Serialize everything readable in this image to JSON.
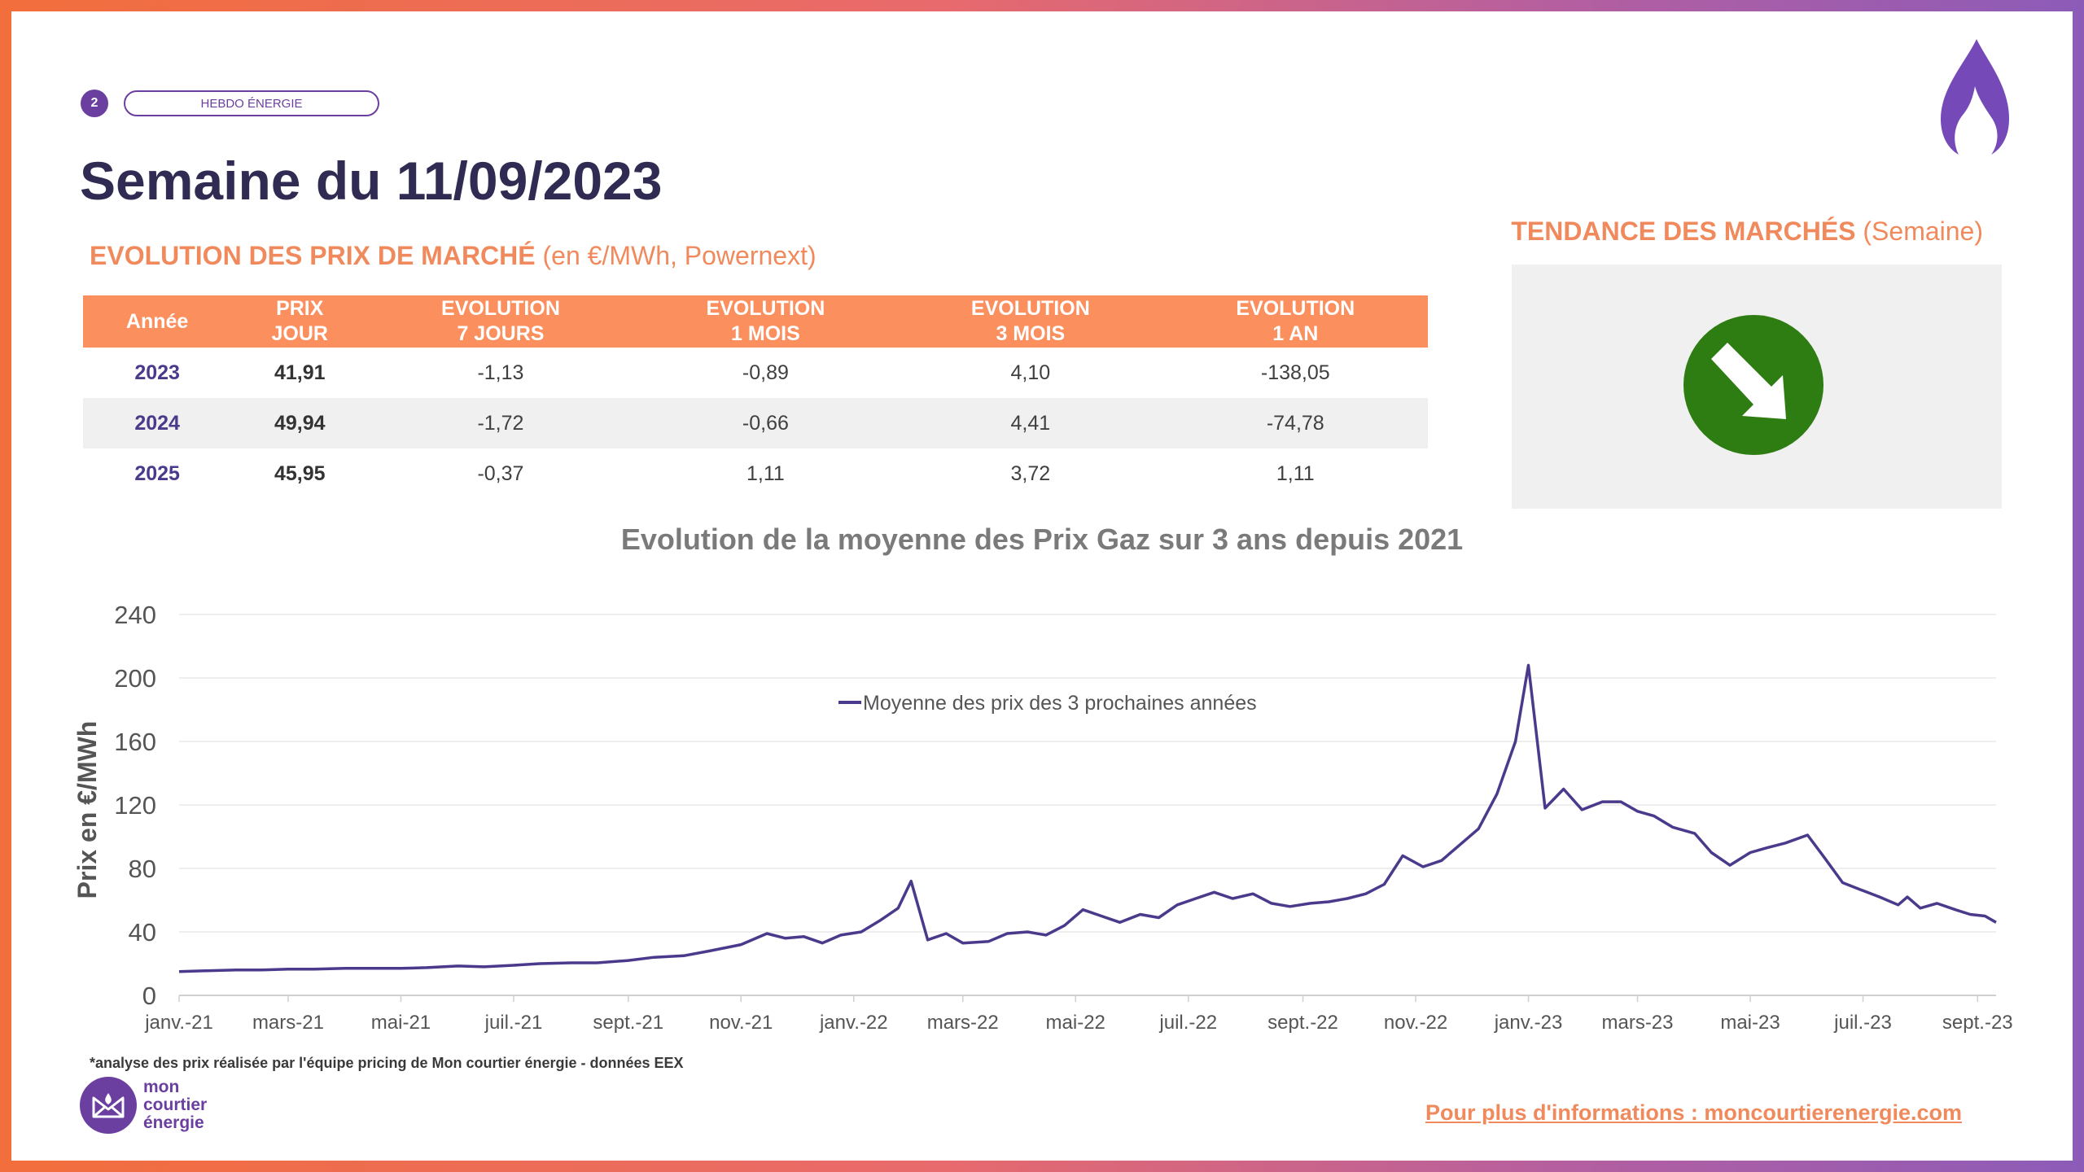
{
  "header": {
    "page_number": "2",
    "section_label": "HEBDO ÉNERGIE",
    "title": "Semaine du 11/09/2023"
  },
  "market_table": {
    "title_bold": "EVOLUTION DES PRIX DE MARCHÉ",
    "title_rest": " (en €/MWh, Powernext)",
    "headers": [
      [
        "Année"
      ],
      [
        "PRIX",
        "JOUR"
      ],
      [
        "EVOLUTION",
        "7 JOURS"
      ],
      [
        "EVOLUTION",
        "1 MOIS"
      ],
      [
        "EVOLUTION",
        "3 MOIS"
      ],
      [
        "EVOLUTION",
        "1 AN"
      ]
    ],
    "rows": [
      [
        "2023",
        "41,91",
        "-1,13",
        "-0,89",
        "4,10",
        "-138,05"
      ],
      [
        "2024",
        "49,94",
        "-1,72",
        "-0,66",
        "4,41",
        "-74,78"
      ],
      [
        "2025",
        "45,95",
        "-0,37",
        "1,11",
        "3,72",
        "1,11"
      ]
    ]
  },
  "trend": {
    "title_bold": "TENDANCE DES MARCHÉS",
    "title_rest": " (Semaine)",
    "direction": "down",
    "color": "#2e7d12"
  },
  "chart_data": {
    "type": "line",
    "title": "Evolution de la moyenne des Prix Gaz sur 3 ans depuis 2021",
    "ylabel": "Prix en €/MWh",
    "xlabel": "",
    "ylim": [
      0,
      240
    ],
    "yticks": [
      0,
      40,
      80,
      120,
      160,
      200,
      240
    ],
    "grid": true,
    "legend_position": "top-center",
    "x_tick_labels": [
      "janv.-21",
      "mars-21",
      "mai-21",
      "juil.-21",
      "sept.-21",
      "nov.-21",
      "janv.-22",
      "mars-22",
      "mai-22",
      "juil.-22",
      "sept.-22",
      "nov.-22",
      "janv.-23",
      "mars-23",
      "mai-23",
      "juil.-23",
      "sept.-23"
    ],
    "x_start": "2021-01-01",
    "x_end": "2023-09-11",
    "series": [
      {
        "name": "Moyenne des prix des 3 prochaines années",
        "color": "#4b3a8c",
        "points": [
          [
            "2021-01-01",
            15
          ],
          [
            "2021-01-15",
            15.5
          ],
          [
            "2021-02-01",
            16
          ],
          [
            "2021-02-15",
            16
          ],
          [
            "2021-03-01",
            16.5
          ],
          [
            "2021-03-15",
            16.5
          ],
          [
            "2021-04-01",
            17
          ],
          [
            "2021-04-15",
            17
          ],
          [
            "2021-05-01",
            17
          ],
          [
            "2021-05-15",
            17.5
          ],
          [
            "2021-06-01",
            18.5
          ],
          [
            "2021-06-15",
            18
          ],
          [
            "2021-07-01",
            19
          ],
          [
            "2021-07-15",
            20
          ],
          [
            "2021-08-01",
            20.5
          ],
          [
            "2021-08-15",
            20.5
          ],
          [
            "2021-09-01",
            22
          ],
          [
            "2021-09-15",
            24
          ],
          [
            "2021-10-01",
            25
          ],
          [
            "2021-10-15",
            28
          ],
          [
            "2021-11-01",
            32
          ],
          [
            "2021-11-15",
            39
          ],
          [
            "2021-11-25",
            36
          ],
          [
            "2021-12-05",
            37
          ],
          [
            "2021-12-15",
            33
          ],
          [
            "2021-12-25",
            38
          ],
          [
            "2022-01-05",
            40
          ],
          [
            "2022-01-15",
            47
          ],
          [
            "2022-01-25",
            55
          ],
          [
            "2022-02-01",
            72
          ],
          [
            "2022-02-10",
            35
          ],
          [
            "2022-02-20",
            39
          ],
          [
            "2022-03-01",
            33
          ],
          [
            "2022-03-15",
            34
          ],
          [
            "2022-03-25",
            39
          ],
          [
            "2022-04-05",
            40
          ],
          [
            "2022-04-15",
            38
          ],
          [
            "2022-04-25",
            44
          ],
          [
            "2022-05-05",
            54
          ],
          [
            "2022-05-15",
            50
          ],
          [
            "2022-05-25",
            46
          ],
          [
            "2022-06-05",
            51
          ],
          [
            "2022-06-15",
            49
          ],
          [
            "2022-06-25",
            57
          ],
          [
            "2022-07-05",
            61
          ],
          [
            "2022-07-15",
            65
          ],
          [
            "2022-07-25",
            61
          ],
          [
            "2022-08-05",
            64
          ],
          [
            "2022-08-15",
            58
          ],
          [
            "2022-08-25",
            56
          ],
          [
            "2022-09-05",
            58
          ],
          [
            "2022-09-15",
            59
          ],
          [
            "2022-09-25",
            61
          ],
          [
            "2022-10-05",
            64
          ],
          [
            "2022-10-15",
            70
          ],
          [
            "2022-10-25",
            88
          ],
          [
            "2022-11-05",
            81
          ],
          [
            "2022-11-15",
            85
          ],
          [
            "2022-11-25",
            95
          ],
          [
            "2022-12-05",
            105
          ],
          [
            "2022-12-15",
            127
          ],
          [
            "2022-12-25",
            160
          ],
          [
            "2023-01-01",
            208
          ],
          [
            "2023-01-10",
            118
          ],
          [
            "2023-01-20",
            130
          ],
          [
            "2023-01-30",
            117
          ],
          [
            "2023-02-10",
            122
          ],
          [
            "2023-02-20",
            122
          ],
          [
            "2023-03-01",
            116
          ],
          [
            "2023-03-10",
            113
          ],
          [
            "2023-03-20",
            106
          ],
          [
            "2023-04-01",
            102
          ],
          [
            "2023-04-10",
            90
          ],
          [
            "2023-04-20",
            82
          ],
          [
            "2023-05-01",
            90
          ],
          [
            "2023-05-10",
            93
          ],
          [
            "2023-05-20",
            96
          ],
          [
            "2023-06-01",
            101
          ],
          [
            "2023-06-10",
            87
          ],
          [
            "2023-06-20",
            71
          ],
          [
            "2023-07-01",
            66
          ],
          [
            "2023-07-10",
            62
          ],
          [
            "2023-07-20",
            57
          ],
          [
            "2023-07-25",
            62
          ],
          [
            "2023-08-01",
            55
          ],
          [
            "2023-08-10",
            58
          ],
          [
            "2023-08-20",
            54
          ],
          [
            "2023-08-28",
            51
          ],
          [
            "2023-09-05",
            50
          ],
          [
            "2023-09-11",
            46
          ]
        ]
      }
    ]
  },
  "footer": {
    "footnote": "*analyse des prix réalisée par l'équipe pricing de Mon courtier énergie -  données EEX",
    "brand_lines": [
      "mon",
      "courtier",
      "énergie"
    ],
    "info_link": "Pour plus d'informations : moncourtierenergie.com"
  }
}
